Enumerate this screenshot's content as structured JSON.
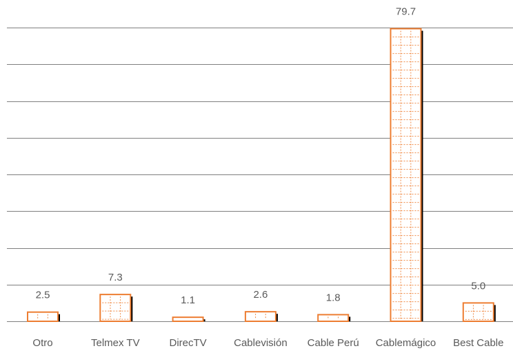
{
  "chart_data": {
    "type": "bar",
    "title": "",
    "categories": [
      "Otro",
      "Telmex TV",
      "DirecTV",
      "Cablevisión",
      "Cable Perú",
      "Cablemágico",
      "Best Cable"
    ],
    "values": [
      2.5,
      7.3,
      1.1,
      2.6,
      1.8,
      79.7,
      5.0
    ],
    "value_labels": [
      "2.5",
      "7.3",
      "1.1",
      "2.6",
      "1.8",
      "79.7",
      "5.0"
    ],
    "xlabel": "",
    "ylabel": "",
    "ylim": [
      0,
      80
    ],
    "grid": true,
    "legend": "none",
    "colors": {
      "bar_stroke": "#ED7D31",
      "bar_fill": "#ffffff",
      "shadow": "#000000",
      "gridline": "#7f7f7f",
      "text": "#595959"
    }
  }
}
